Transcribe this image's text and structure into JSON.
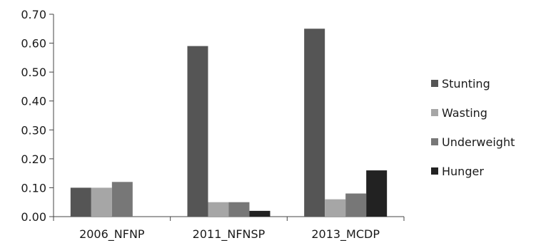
{
  "chart_data": {
    "type": "bar",
    "title": "",
    "xlabel": "",
    "ylabel": "",
    "categories": [
      "2006_NFNP",
      "2011_NFNSP",
      "2013_MCDP"
    ],
    "series": [
      {
        "name": "Stunting",
        "values": [
          0.1,
          0.59,
          0.65
        ],
        "color": "#555555"
      },
      {
        "name": "Wasting",
        "values": [
          0.1,
          0.05,
          0.06
        ],
        "color": "#a6a6a6"
      },
      {
        "name": "Underweight",
        "values": [
          0.12,
          0.05,
          0.08
        ],
        "color": "#777777"
      },
      {
        "name": "Hunger",
        "values": [
          null,
          0.02,
          0.16
        ],
        "color": "#222222"
      }
    ],
    "ylim": [
      0,
      0.7
    ],
    "yticks": [
      "0.00",
      "0.10",
      "0.20",
      "0.30",
      "0.40",
      "0.50",
      "0.60",
      "0.70"
    ],
    "grid": false,
    "legend_position": "right"
  }
}
